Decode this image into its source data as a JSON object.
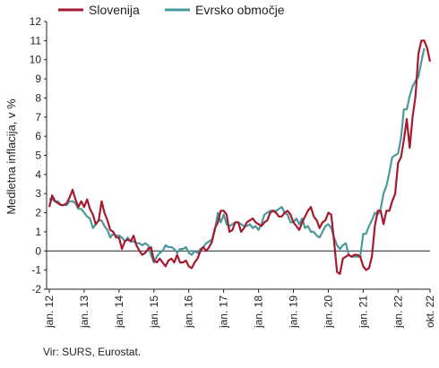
{
  "chart_data": {
    "type": "line",
    "ylabel": "Medletna inflacija, v %",
    "ylim": [
      -2,
      12
    ],
    "yticks": [
      -2,
      -1,
      0,
      1,
      2,
      3,
      4,
      5,
      6,
      7,
      8,
      9,
      10,
      11,
      12
    ],
    "xlabels": [
      "jan. 12",
      "jan. 13",
      "jan. 14",
      "jan. 15",
      "jan. 16",
      "jan. 17",
      "jan. 18",
      "jan. 19",
      "jan. 20",
      "jan. 21",
      "jan. 22",
      "okt. 22"
    ],
    "x_start": "jan. 12",
    "legend_position": "top",
    "series": [
      {
        "name": "Slovenija",
        "color": "#a6192e",
        "values": [
          2.3,
          2.9,
          2.6,
          2.5,
          2.4,
          2.4,
          2.5,
          2.8,
          3.2,
          2.7,
          2.3,
          2.6,
          2.3,
          2.7,
          2.2,
          1.9,
          1.4,
          1.6,
          2.6,
          2.0,
          1.6,
          1.1,
          1.0,
          0.7,
          0.7,
          0.1,
          0.5,
          0.6,
          0.5,
          0.8,
          0.3,
          0.0,
          -0.2,
          -0.1,
          0.1,
          0.2,
          -0.5,
          -0.6,
          -0.4,
          -0.6,
          -0.8,
          -0.5,
          -0.4,
          -0.6,
          -0.2,
          -0.6,
          -0.6,
          -0.5,
          -0.8,
          -0.9,
          -0.6,
          -0.4,
          0.0,
          0.2,
          0.0,
          0.2,
          0.5,
          1.2,
          1.5,
          2.1,
          2.1,
          1.9,
          1.0,
          1.1,
          1.5,
          1.5,
          1.0,
          1.2,
          1.5,
          1.6,
          1.7,
          1.5,
          1.4,
          1.3,
          1.5,
          1.6,
          2.0,
          2.1,
          2.0,
          1.8,
          1.8,
          2.0,
          2.1,
          1.9,
          1.5,
          1.3,
          1.1,
          1.5,
          1.8,
          2.1,
          2.3,
          1.8,
          1.6,
          1.2,
          1.5,
          1.6,
          2.0,
          1.9,
          0.5,
          -1.1,
          -1.2,
          -0.4,
          -0.3,
          -0.2,
          -0.3,
          -0.2,
          -0.2,
          -0.3,
          -0.8,
          -1.0,
          -0.9,
          -0.3,
          1.3,
          2.1,
          2.1,
          1.4,
          2.1,
          2.1,
          2.6,
          3.0,
          4.6,
          4.9,
          5.8,
          6.9,
          5.4,
          7.0,
          8.1,
          10.3,
          11.0,
          11.0,
          10.6,
          9.9
        ]
      },
      {
        "name": "Evrsko območje",
        "color": "#4a9a9c",
        "values": [
          2.7,
          2.7,
          2.6,
          2.6,
          2.4,
          2.4,
          2.4,
          2.6,
          2.6,
          2.5,
          2.2,
          2.2,
          2.0,
          1.8,
          1.7,
          1.2,
          1.4,
          1.6,
          1.6,
          1.3,
          1.1,
          0.7,
          0.9,
          0.8,
          0.8,
          0.7,
          0.5,
          0.7,
          0.5,
          0.5,
          0.4,
          0.4,
          0.3,
          0.4,
          0.3,
          -0.2,
          -0.6,
          -0.3,
          -0.1,
          0.0,
          0.3,
          0.2,
          0.2,
          0.1,
          -0.1,
          0.1,
          0.1,
          0.2,
          -0.1,
          -0.2,
          0.0,
          -0.1,
          0.1,
          0.2,
          0.4,
          0.5,
          0.6,
          1.1,
          2.0,
          1.5,
          1.9,
          1.4,
          1.3,
          1.4,
          1.5,
          1.5,
          1.4,
          1.3,
          1.3,
          1.4,
          1.2,
          1.3,
          1.1,
          1.4,
          1.9,
          2.0,
          2.1,
          2.1,
          2.1,
          2.2,
          2.3,
          2.0,
          1.9,
          1.5,
          1.5,
          1.7,
          1.4,
          1.7,
          1.2,
          1.3,
          1.0,
          1.0,
          0.8,
          0.7,
          1.0,
          1.3,
          1.4,
          1.2,
          0.7,
          0.3,
          0.1,
          0.3,
          0.4,
          -0.2,
          -0.3,
          -0.3,
          -0.3,
          -0.3,
          0.9,
          0.9,
          1.3,
          1.6,
          2.0,
          1.9,
          2.2,
          3.0,
          3.4,
          4.1,
          4.9,
          5.0,
          5.1,
          5.9,
          7.4,
          7.4,
          8.1,
          8.6,
          8.9,
          9.1,
          9.9,
          10.6
        ]
      }
    ]
  },
  "source": "Vir: SURS, Eurostat."
}
